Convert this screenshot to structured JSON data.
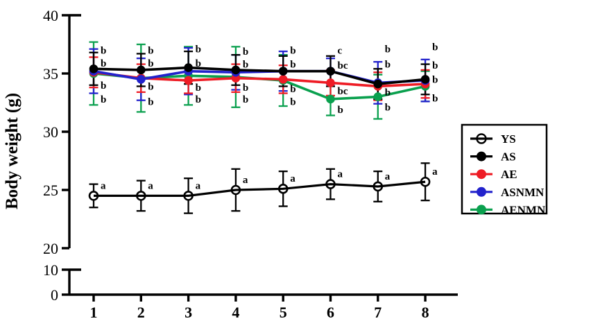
{
  "chart_data": {
    "type": "line",
    "title": "",
    "xlabel": "",
    "ylabel": "Body weight (g)",
    "x": [
      1,
      2,
      3,
      4,
      5,
      6,
      7,
      8
    ],
    "x_tick_labels": [
      "1",
      "2",
      "3",
      "4",
      "5",
      "6",
      "7",
      "8"
    ],
    "y_axis": {
      "broken": true,
      "upper_segment": {
        "range": [
          20,
          40
        ],
        "ticks": [
          20,
          25,
          30,
          35,
          40
        ]
      },
      "lower_segment": {
        "range": [
          0,
          10
        ],
        "ticks": [
          0,
          10
        ]
      }
    },
    "grid": false,
    "legend": {
      "position": "right",
      "items": [
        "YS",
        "AS",
        "AE",
        "ASNMN",
        "AENMN"
      ]
    },
    "series": [
      {
        "name": "YS",
        "color": "#000000",
        "marker": "open-circle",
        "values": [
          24.5,
          24.5,
          24.5,
          25.0,
          25.1,
          25.5,
          25.3,
          25.7
        ],
        "errors": [
          1.0,
          1.3,
          1.5,
          1.8,
          1.5,
          1.3,
          1.3,
          1.6
        ],
        "letters": [
          "a",
          "a",
          "a",
          "a",
          "a",
          "a",
          "a",
          "a"
        ],
        "letter_y": [
          25.4,
          25.4,
          25.4,
          25.9,
          26.0,
          26.4,
          26.2,
          26.6
        ]
      },
      {
        "name": "AS",
        "color": "#000000",
        "marker": "filled-circle",
        "values": [
          35.4,
          35.3,
          35.5,
          35.3,
          35.2,
          35.2,
          34.1,
          34.5
        ],
        "errors": [
          1.4,
          1.4,
          1.4,
          1.3,
          1.3,
          1.3,
          1.3,
          1.3
        ],
        "letters": [
          "b",
          "b",
          "b",
          "b",
          "b",
          "c",
          "b",
          "b"
        ],
        "letter_y": [
          37.0,
          37.0,
          37.1,
          36.9,
          37.0,
          37.0,
          37.1,
          37.3
        ]
      },
      {
        "name": "AE",
        "color": "#ee1c25",
        "marker": "filled-circle",
        "values": [
          35.1,
          34.6,
          34.4,
          34.6,
          34.5,
          34.2,
          33.9,
          34.1
        ],
        "errors": [
          1.3,
          1.2,
          1.1,
          1.2,
          1.2,
          1.1,
          1.2,
          1.2
        ],
        "letters": [
          "b",
          "b",
          "b",
          "b",
          "b",
          "bc",
          "b",
          "b"
        ],
        "letter_y": [
          34.0,
          33.9,
          33.8,
          33.8,
          33.7,
          33.5,
          33.4,
          34.5
        ]
      },
      {
        "name": "ASNMN",
        "color": "#2222cc",
        "marker": "filled-circle",
        "values": [
          35.2,
          34.5,
          35.2,
          35.1,
          35.2,
          35.2,
          34.2,
          34.4
        ],
        "errors": [
          1.9,
          1.8,
          2.0,
          1.5,
          1.7,
          1.1,
          1.8,
          1.8
        ],
        "letters": [
          "b",
          "b",
          "b",
          "b",
          "b",
          "bc",
          "b",
          "b"
        ],
        "letter_y": [
          35.9,
          35.9,
          35.9,
          35.8,
          35.8,
          35.7,
          35.8,
          35.7
        ]
      },
      {
        "name": "AENMN",
        "color": "#0aa04e",
        "marker": "filled-circle",
        "values": [
          35.0,
          34.6,
          34.8,
          34.7,
          34.4,
          32.8,
          33.0,
          33.9
        ],
        "errors": [
          2.7,
          2.9,
          2.5,
          2.6,
          2.2,
          1.4,
          1.9,
          1.3
        ],
        "letters": [
          "b",
          "b",
          "b",
          "b",
          "b",
          "b",
          "b",
          "b"
        ],
        "letter_y": [
          32.8,
          32.6,
          32.8,
          32.8,
          32.6,
          31.9,
          32.1,
          32.9
        ]
      }
    ]
  }
}
